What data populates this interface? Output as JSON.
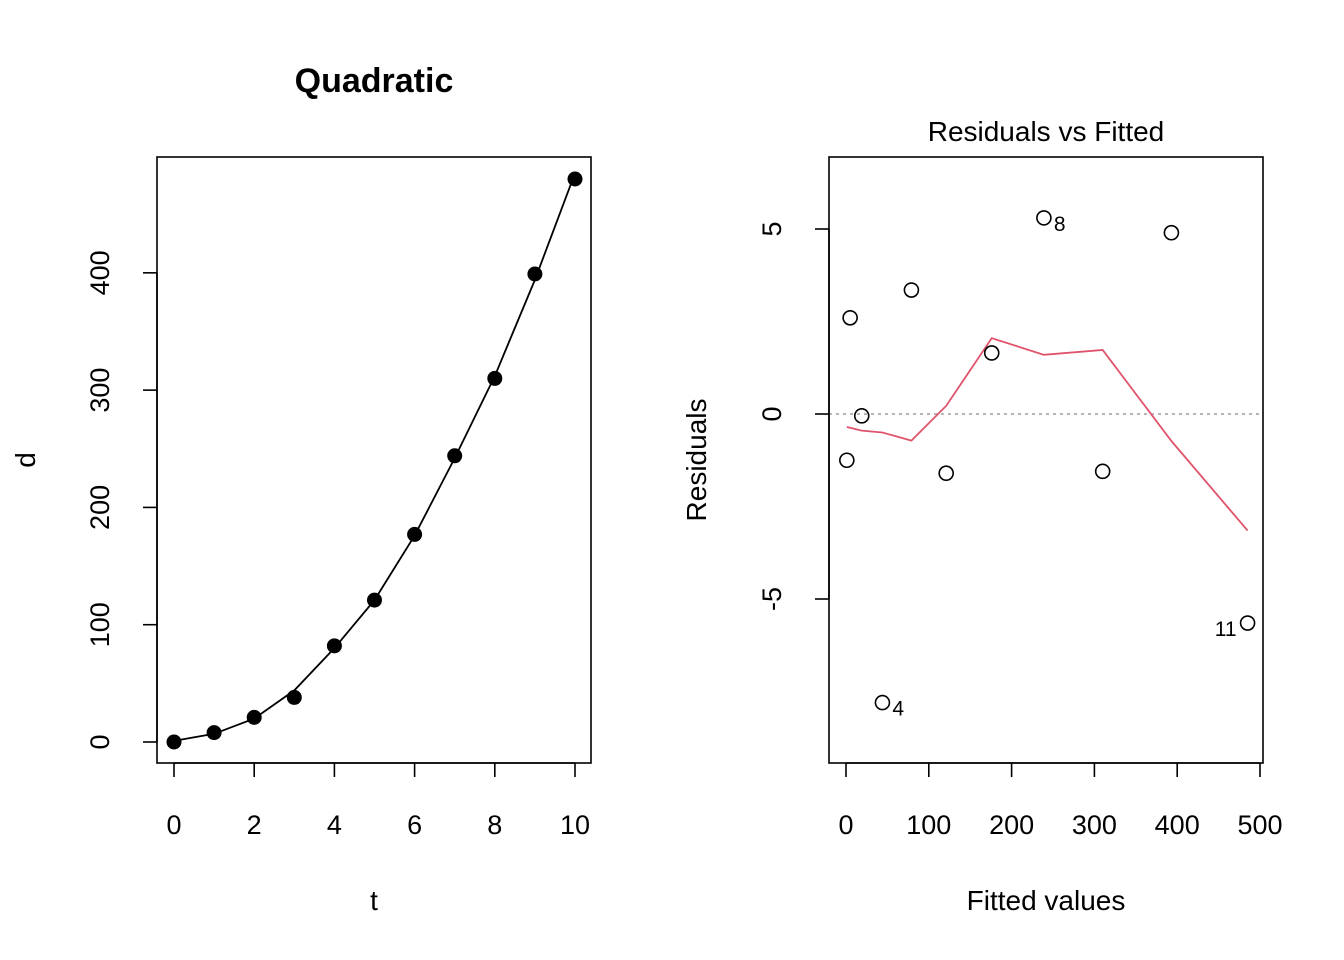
{
  "chart_data": [
    {
      "type": "scatter",
      "title": "Quadratic",
      "xlabel": "t",
      "ylabel": "d",
      "xlim": [
        0,
        10
      ],
      "ylim": [
        0,
        480
      ],
      "x_ticks": [
        0,
        2,
        4,
        6,
        8,
        10
      ],
      "y_ticks": [
        0,
        100,
        200,
        300,
        400
      ],
      "x_tick_labels": [
        "0",
        "2",
        "4",
        "6",
        "8",
        "10"
      ],
      "y_tick_labels": [
        "0",
        "100",
        "200",
        "300",
        "400"
      ],
      "points": {
        "x": [
          0,
          1,
          2,
          3,
          4,
          5,
          6,
          7,
          8,
          9,
          10
        ],
        "y": [
          0,
          8,
          21,
          38,
          82,
          121,
          177,
          244,
          310,
          399,
          480
        ]
      },
      "fit_line": {
        "x": [
          0,
          1,
          2,
          3,
          4,
          5,
          6,
          7,
          8,
          9,
          10
        ],
        "y": [
          1,
          7,
          20,
          44,
          80,
          121,
          176,
          242,
          312,
          394,
          485
        ]
      },
      "colors": {
        "points": "#000000",
        "line": "#000000"
      }
    },
    {
      "type": "scatter",
      "title": "Residuals vs Fitted",
      "xlabel": "Fitted values",
      "ylabel": "Residuals",
      "xlim": [
        0,
        500
      ],
      "ylim": [
        -9,
        7
      ],
      "x_ticks": [
        0,
        100,
        200,
        300,
        400,
        500
      ],
      "y_ticks": [
        -5,
        0,
        5
      ],
      "x_tick_labels": [
        "0",
        "100",
        "200",
        "300",
        "400",
        "500"
      ],
      "y_tick_labels": [
        "-5",
        "0",
        "5"
      ],
      "points": {
        "x": [
          1,
          5,
          19,
          44,
          79,
          121,
          176,
          239,
          310,
          393,
          485
        ],
        "y": [
          -1.25,
          2.6,
          -0.05,
          -7.8,
          3.35,
          -1.6,
          1.65,
          5.3,
          -1.55,
          4.9,
          -5.65
        ]
      },
      "point_labels": [
        {
          "index": 3,
          "text": "4"
        },
        {
          "index": 7,
          "text": "8"
        },
        {
          "index": 10,
          "text": "11"
        }
      ],
      "smooth_line": {
        "x": [
          1,
          19,
          44,
          79,
          121,
          176,
          239,
          310,
          393,
          485
        ],
        "y": [
          -0.35,
          -0.45,
          -0.5,
          -0.72,
          0.22,
          2.05,
          1.6,
          1.73,
          -0.73,
          -3.15
        ]
      },
      "reference_line": {
        "y": 0,
        "style": "dotted"
      },
      "colors": {
        "points": "#000000",
        "smooth": "#DF536B",
        "reference": "#9E9E9E"
      }
    }
  ]
}
